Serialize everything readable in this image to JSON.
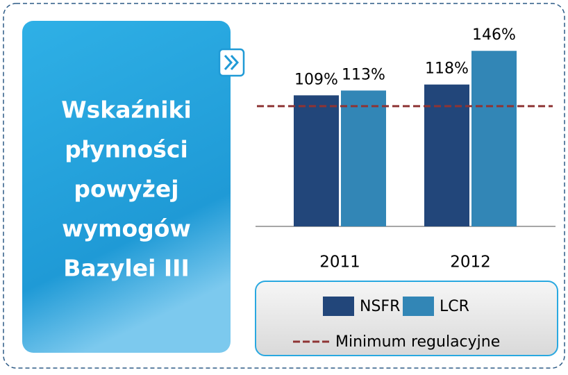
{
  "chart_data": {
    "type": "bar",
    "title_lines": [
      "Wskaźniki",
      "płynności",
      "powyżej",
      "wymogów",
      "Bazylei III"
    ],
    "categories": [
      "2011",
      "2012"
    ],
    "series": [
      {
        "name": "NSFR",
        "color": "#22467a",
        "values": [
          109,
          118
        ],
        "value_labels": [
          "109%",
          "118%"
        ]
      },
      {
        "name": "LCR",
        "color": "#3286b6",
        "values": [
          113,
          146
        ],
        "value_labels": [
          "113%",
          "146%"
        ]
      }
    ],
    "reference_line": {
      "name": "Minimum regulacyjne",
      "value": 100,
      "color": "#8e3434"
    },
    "ylim": [
      0,
      160
    ]
  }
}
